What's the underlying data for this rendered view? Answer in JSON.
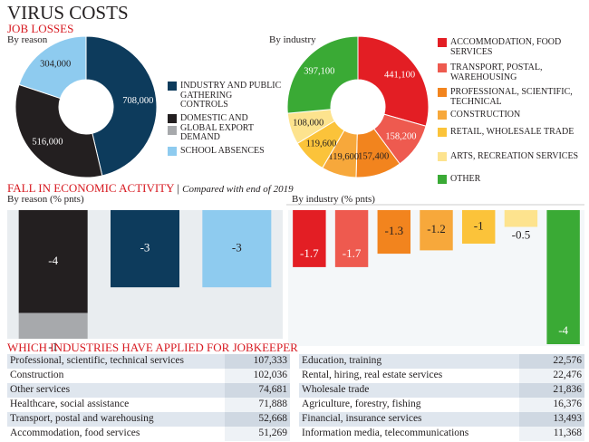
{
  "header": {
    "title": "VIRUS COSTS",
    "section1": "JOB LOSSES",
    "section2": "FALL IN ECONOMIC ACTIVITY",
    "section2_note": "Compared with end of 2019",
    "section3": "WHICH INDUSTRIES HAVE APPLIED FOR JOBKEEPER"
  },
  "chart_data": [
    {
      "type": "pie",
      "subtitle": "By reason",
      "categories": [
        "INDUSTRY AND PUBLIC GATHERING CONTROLS",
        "DOMESTIC AND GLOBAL EXPORT DEMAND",
        "SCHOOL ABSENCES"
      ],
      "values": [
        708000,
        516000,
        304000
      ],
      "value_labels": [
        "708,000",
        "516,000",
        "304,000"
      ],
      "colors": [
        "#0d3b5c",
        "#231f20",
        "#8ecbef"
      ]
    },
    {
      "type": "pie",
      "subtitle": "By industry",
      "categories": [
        "ACCOMMODATION, FOOD SERVICES",
        "TRANSPORT, POSTAL, WAREHOUSING",
        "PROFESSIONAL, SCIENTIFIC, TECHNICAL",
        "CONSTRUCTION",
        "RETAIL, WHOLESALE TRADE",
        "ARTS, RECREATION SERVICES",
        "OTHER"
      ],
      "values": [
        441100,
        158200,
        157400,
        119600,
        119600,
        108000,
        397100
      ],
      "value_labels": [
        "441,100",
        "158,200",
        "157,400",
        "119,600",
        "119,600",
        "108,000",
        "397,100"
      ],
      "colors": [
        "#e31e24",
        "#ee5a4f",
        "#f2841e",
        "#f7a83b",
        "#fbc33a",
        "#fde38e",
        "#3aaa35"
      ]
    },
    {
      "type": "bar",
      "subtitle": "By reason (% pnts)",
      "categories": [
        null,
        null,
        null
      ],
      "stacked": true,
      "series": [
        {
          "colors": [
            "#231f20",
            "#0d3b5c",
            "#8ecbef"
          ],
          "values": [
            -4,
            -3,
            -3
          ]
        },
        {
          "colors": [
            "#a7a9ac",
            null,
            null
          ],
          "values": [
            -1,
            null,
            null
          ]
        }
      ],
      "ylim": [
        -5,
        0
      ]
    },
    {
      "type": "bar",
      "subtitle": "By industry (% pnts)",
      "categories": [
        null,
        null,
        null,
        null,
        null,
        null,
        null
      ],
      "values": [
        -1.7,
        -1.7,
        -1.3,
        -1.2,
        -1,
        -0.5,
        -4
      ],
      "colors": [
        "#e31e24",
        "#ee5a4f",
        "#f2841e",
        "#f7a83b",
        "#fbc33a",
        "#fde38e",
        "#3aaa35"
      ],
      "ylim": [
        -4,
        0
      ]
    }
  ],
  "table": {
    "rows": [
      [
        "Professional, scientific, technical services",
        "107,333"
      ],
      [
        "Construction",
        "102,036"
      ],
      [
        "Other services",
        "74,681"
      ],
      [
        "Healthcare, social assistance",
        "71,888"
      ],
      [
        "Transport, postal and warehousing",
        "52,668"
      ],
      [
        "Accommodation, food services",
        "51,269"
      ],
      [
        "Education, training",
        "22,576"
      ],
      [
        "Rental, hiring, real estate services",
        "22,476"
      ],
      [
        "Wholesale trade",
        "21,836"
      ],
      [
        "Agriculture, forestry, fishing",
        "16,376"
      ],
      [
        "Financial, insurance services",
        "13,493"
      ],
      [
        "Information media, telecommunications",
        "11,368"
      ]
    ]
  }
}
